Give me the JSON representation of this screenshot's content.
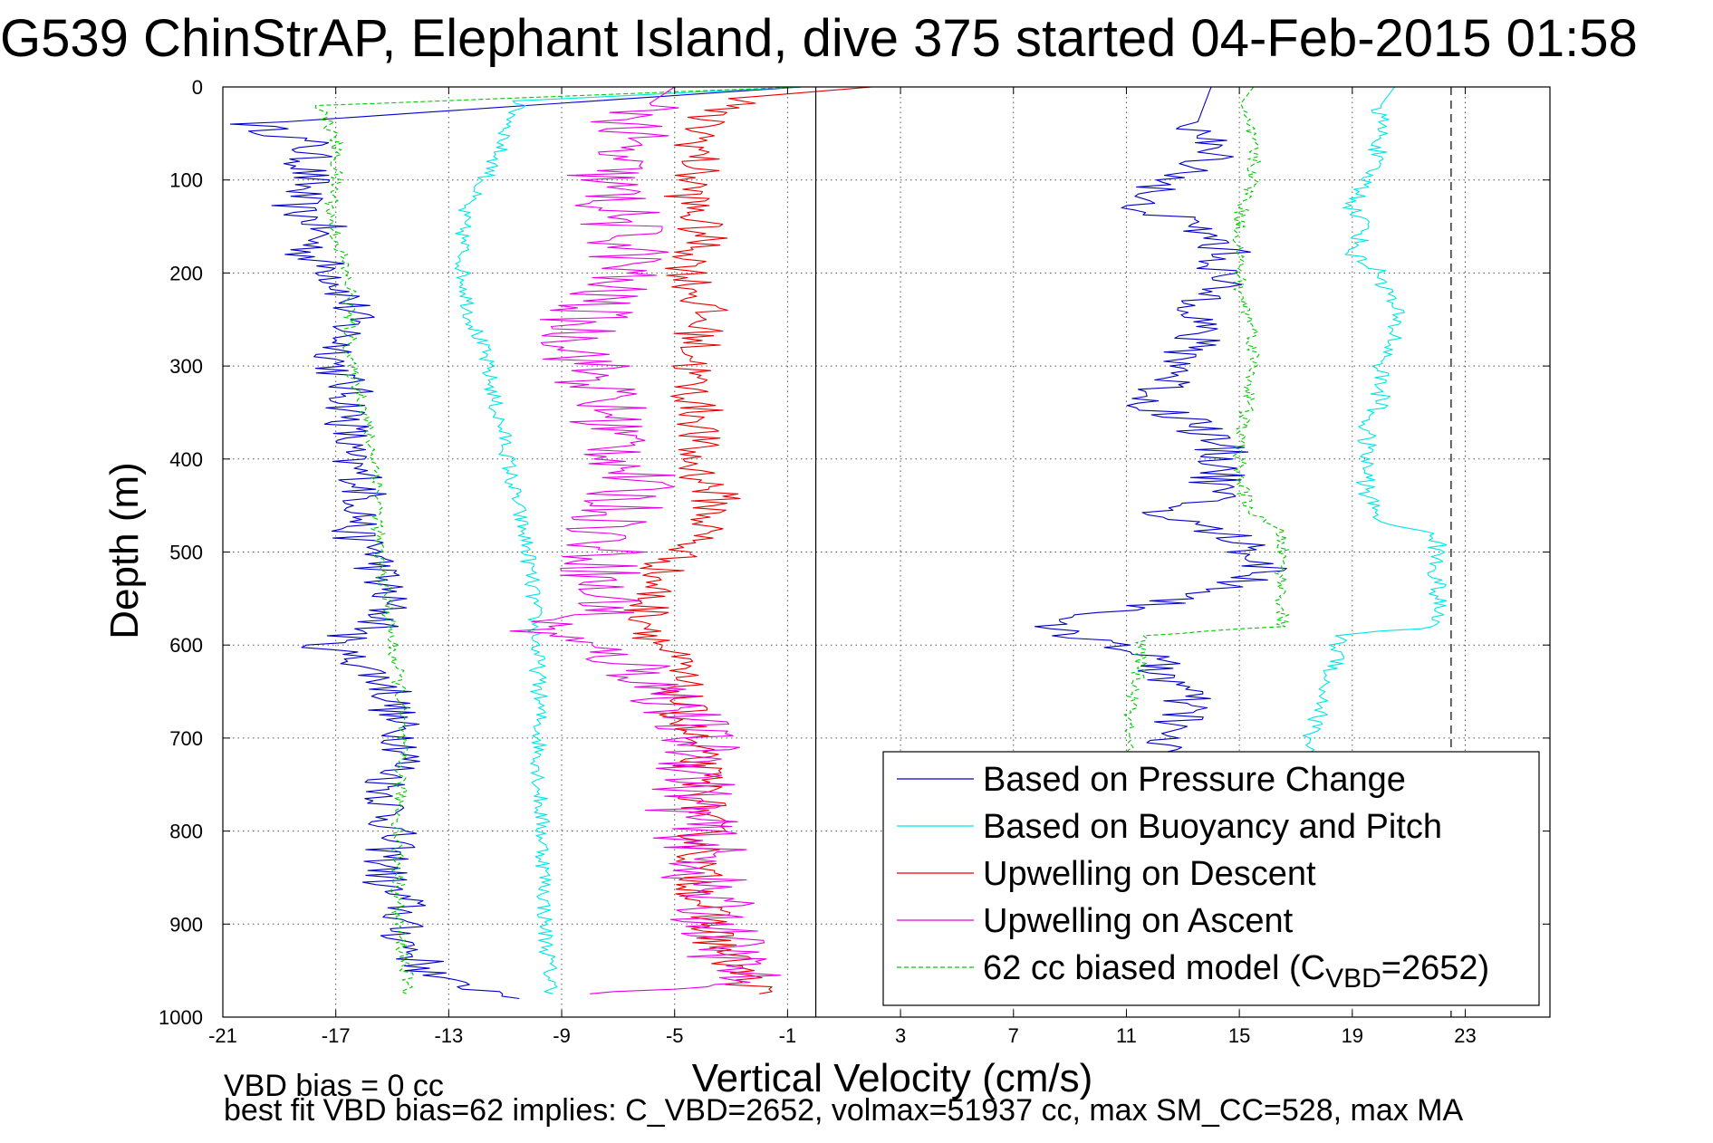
{
  "chart_data": {
    "type": "line",
    "title": "G539 ChinStrAP, Elephant Island, dive 375 started 04-Feb-2015 01:58",
    "xlabel": "Vertical Velocity (cm/s)",
    "ylabel": "Depth (m)",
    "xlim": [
      -21,
      26
    ],
    "ylim": [
      1000,
      0
    ],
    "y_reversed": true,
    "xticks": [
      "-21",
      "-17",
      "-13",
      "-9",
      "-5",
      "-1",
      "3",
      "7",
      "11",
      "15",
      "19",
      "23"
    ],
    "yticks": [
      "0",
      "100",
      "200",
      "300",
      "400",
      "500",
      "600",
      "700",
      "800",
      "900",
      "1000"
    ],
    "grid": true,
    "legend_position": "bottom-right",
    "legend": [
      {
        "label": "Based on Pressure Change",
        "color": "#0000c8",
        "dashed": false
      },
      {
        "label": "Based on Buoyancy and Pitch",
        "color": "#00e6e6",
        "dashed": false
      },
      {
        "label": "Upwelling on Descent",
        "color": "#e60000",
        "dashed": false
      },
      {
        "label": "Upwelling on Ascent",
        "color": "#e600e6",
        "dashed": false
      },
      {
        "label": "62 cc biased model (C",
        "sub": "VBD",
        "suffix": "=2652)",
        "color": "#00c800",
        "dashed": true
      }
    ],
    "vertical_lines": [
      {
        "x": 0,
        "style": "solid"
      },
      {
        "x": 22.5,
        "style": "dashed"
      }
    ],
    "series": [
      {
        "color": "#0000c8",
        "noise": 0.9,
        "x": [
          -0.5,
          -20,
          -18,
          -18,
          -18.5,
          -17.5,
          -18,
          -17,
          -16.5,
          -16.5,
          -16.8,
          -17,
          -16.5,
          -16.5,
          -16.6,
          -16.7,
          -16,
          -16,
          -16,
          -16.5,
          -15.5,
          -15.5,
          -15.3,
          -15.2,
          -15.5,
          -16.5,
          -17.5,
          -16,
          -15,
          -15,
          -14.5,
          -14.5,
          -15.2,
          -15,
          -15.2,
          -15.3,
          -14.5,
          -14.8,
          -14.5,
          -14,
          -13.5,
          -11,
          -10.5
        ],
        "y": [
          0,
          40,
          60,
          100,
          130,
          150,
          180,
          200,
          230,
          250,
          280,
          300,
          330,
          350,
          380,
          400,
          420,
          440,
          460,
          480,
          500,
          520,
          540,
          560,
          580,
          590,
          600,
          620,
          650,
          680,
          700,
          720,
          750,
          800,
          840,
          860,
          880,
          900,
          920,
          940,
          960,
          975,
          980
        ]
      },
      {
        "color": "#00e6e6",
        "noise": 0.3,
        "x": [
          -0.5,
          -10.5,
          -11.5,
          -12.5,
          -12.5,
          -12.2,
          -11.8,
          -11.5,
          -11.3,
          -11,
          -10.8,
          -10.5,
          -10.2,
          -10,
          -9.9,
          -9.8,
          -9.8,
          -9.8,
          -9.7,
          -9.6,
          -9.6,
          -9.6,
          -9.5,
          -9.4,
          -9.3
        ],
        "y": [
          0,
          15,
          90,
          130,
          200,
          250,
          280,
          320,
          350,
          380,
          420,
          460,
          500,
          550,
          600,
          650,
          700,
          750,
          800,
          850,
          880,
          900,
          930,
          960,
          975
        ]
      },
      {
        "color": "#e60000",
        "noise": 0.9,
        "x": [
          2,
          -2,
          -4,
          -4.2,
          -4.5,
          -4,
          -4.5,
          -4,
          -4.2,
          -4.5,
          -4,
          -4.5,
          -3.5,
          -4,
          -5.5,
          -6,
          -5.5,
          -5,
          -4.8,
          -4.5,
          -4,
          -4,
          -4.2,
          -4,
          -3.5,
          -3,
          -2.5,
          -2
        ],
        "y": [
          0,
          10,
          30,
          80,
          120,
          160,
          200,
          240,
          280,
          320,
          360,
          400,
          440,
          480,
          520,
          560,
          600,
          620,
          660,
          700,
          750,
          800,
          840,
          880,
          920,
          940,
          960,
          975
        ]
      },
      {
        "color": "#e600e6",
        "noise": 1.6,
        "x": [
          -5,
          -6,
          -7,
          -7.5,
          -7,
          -6.5,
          -7.5,
          -8.5,
          -8,
          -7.5,
          -7,
          -6.5,
          -7,
          -7.5,
          -7.5,
          -7.5,
          -8,
          -7,
          -10,
          -8.5,
          -6.5,
          -5,
          -4,
          -4.5,
          -4,
          -4,
          -3.5,
          -3,
          -2.5,
          -8
        ],
        "y": [
          0,
          20,
          60,
          100,
          140,
          180,
          220,
          260,
          300,
          340,
          380,
          420,
          460,
          480,
          500,
          520,
          540,
          560,
          580,
          600,
          620,
          660,
          720,
          780,
          820,
          860,
          900,
          940,
          960,
          975
        ]
      },
      {
        "color": "#00c800",
        "dashed": true,
        "noise": 0.25,
        "x": [
          -0.5,
          -17.5,
          -17,
          -17,
          -17.2,
          -16.8,
          -16.5,
          -16.5,
          -16.5,
          -16,
          -15.8,
          -15.5,
          -15.5,
          -15.5,
          -15.2,
          -15,
          -14.7,
          -14.7,
          -14.7,
          -14.8,
          -14.8,
          -14.8,
          -14.5,
          -14.5
        ],
        "y": [
          0,
          20,
          60,
          100,
          140,
          180,
          220,
          260,
          300,
          340,
          380,
          420,
          460,
          500,
          550,
          600,
          650,
          700,
          750,
          800,
          850,
          900,
          950,
          975
        ]
      },
      {
        "color": "#0000c8",
        "noise": 1.0,
        "x": [
          14,
          13.5,
          14,
          12,
          11,
          12.5,
          14,
          14.5,
          14,
          13.5,
          13,
          12.5,
          11.5,
          13.5,
          14.5,
          14,
          12,
          14.5,
          15.5,
          16,
          14.5,
          11.5,
          7.5,
          11,
          12,
          13,
          13,
          12,
          13,
          12,
          15.5
        ],
        "y": [
          0,
          40,
          80,
          110,
          120,
          140,
          160,
          180,
          220,
          260,
          300,
          320,
          340,
          360,
          400,
          440,
          460,
          480,
          500,
          520,
          540,
          560,
          580,
          600,
          620,
          650,
          680,
          700,
          720,
          730,
          975
        ]
      },
      {
        "color": "#00e6e6",
        "noise": 0.35,
        "x": [
          20.5,
          20,
          20,
          19.5,
          19,
          19.5,
          19,
          20,
          20.5,
          20.5,
          20,
          20,
          19.5,
          19.5,
          19.5,
          20,
          20,
          22,
          22,
          22,
          22,
          22,
          18.5,
          18.5,
          18,
          18,
          17.5,
          17.5,
          17.5
        ],
        "y": [
          0,
          20,
          60,
          100,
          130,
          150,
          180,
          200,
          240,
          270,
          300,
          340,
          360,
          400,
          440,
          460,
          470,
          480,
          500,
          520,
          540,
          580,
          590,
          620,
          640,
          660,
          700,
          710,
          720
        ]
      },
      {
        "color": "#00c800",
        "dashed": true,
        "noise": 0.25,
        "x": [
          15.5,
          15,
          15.5,
          15.5,
          15,
          15,
          15,
          15.5,
          15.5,
          15.3,
          15,
          15,
          15.2,
          15.5,
          16.5,
          16.5,
          16.5,
          16.5,
          16.5,
          11.5,
          11.5,
          11.2,
          11,
          11
        ],
        "y": [
          0,
          20,
          60,
          100,
          140,
          180,
          220,
          260,
          300,
          340,
          380,
          420,
          440,
          460,
          480,
          500,
          520,
          550,
          580,
          590,
          620,
          660,
          700,
          720
        ]
      }
    ]
  },
  "footer": {
    "line1": "VBD bias = 0 cc",
    "line2": "best fit VBD bias=62 implies: C_VBD=2652, volmax=51937 cc, max SM_CC=528, max MA"
  }
}
